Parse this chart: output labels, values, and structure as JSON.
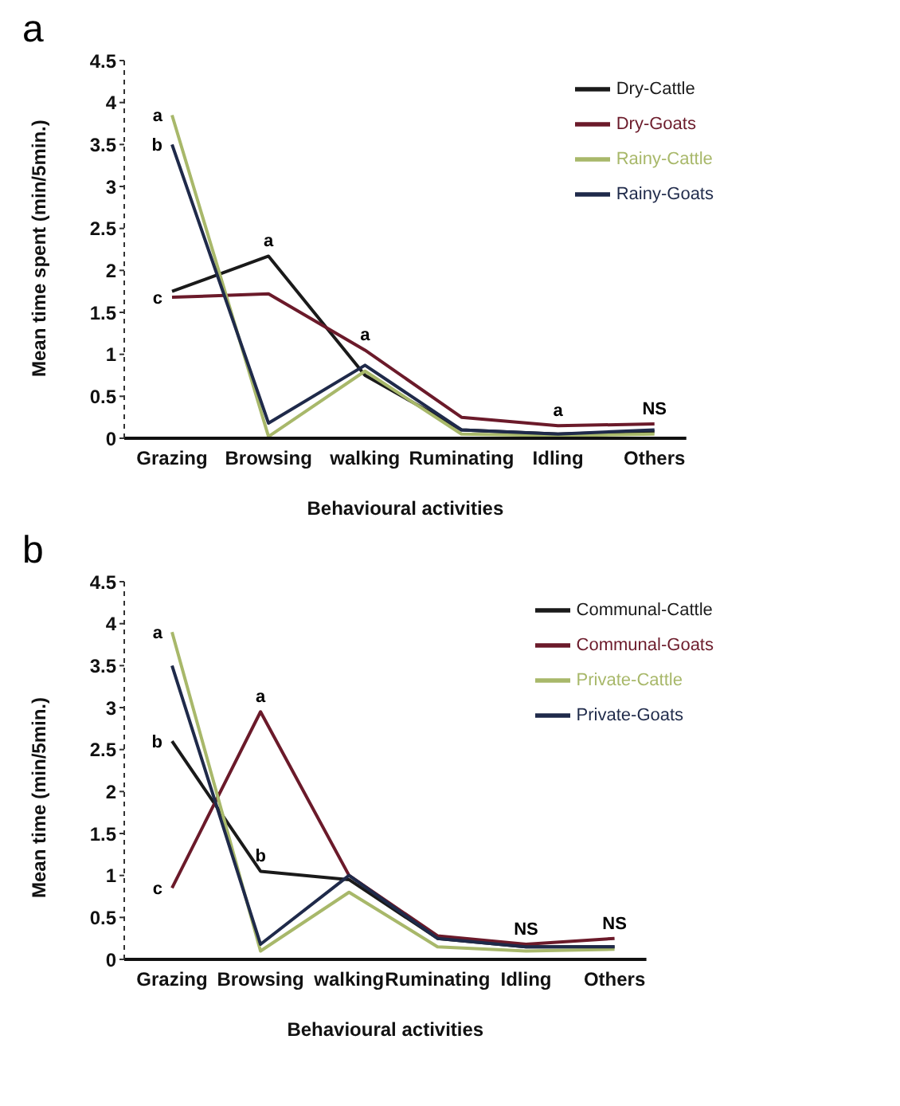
{
  "chart_data": [
    {
      "type": "line",
      "title": "a",
      "xlabel": "Behavioural activities",
      "ylabel": "Mean time spent (min/5min.)",
      "categories": [
        "Grazing",
        "Browsing",
        "walking",
        "Ruminating",
        "Idling",
        "Others"
      ],
      "series": [
        {
          "name": "Dry-Cattle",
          "color": "#1a1a1a",
          "values": [
            1.75,
            2.17,
            0.75,
            0.1,
            0.05,
            0.08
          ]
        },
        {
          "name": "Dry-Goats",
          "color": "#6b1a2a",
          "values": [
            1.68,
            1.72,
            1.05,
            0.25,
            0.15,
            0.17
          ]
        },
        {
          "name": "Rainy-Cattle",
          "color": "#a8b86a",
          "values": [
            3.85,
            0.02,
            0.8,
            0.05,
            0.03,
            0.05
          ]
        },
        {
          "name": "Rainy-Goats",
          "color": "#1f2a4a",
          "values": [
            3.5,
            0.18,
            0.87,
            0.1,
            0.05,
            0.1
          ]
        }
      ],
      "ylim": [
        0,
        4.5
      ],
      "yticks": [
        0,
        0.5,
        1,
        1.5,
        2,
        2.5,
        3,
        3.5,
        4,
        4.5
      ],
      "annotations": [
        {
          "text": "a",
          "x": "Grazing",
          "y": 3.85
        },
        {
          "text": "b",
          "x": "Grazing",
          "y": 3.5
        },
        {
          "text": "c",
          "x": "Grazing",
          "y": 1.68
        },
        {
          "text": "a",
          "x": "Browsing",
          "y": 2.17
        },
        {
          "text": "a",
          "x": "walking",
          "y": 1.05
        },
        {
          "text": "a",
          "x": "Idling",
          "y": 0.15
        },
        {
          "text": "NS",
          "x": "Others",
          "y": 0.17
        }
      ],
      "legend": "top right",
      "grid": false,
      "marker": "none",
      "line_style": "solid"
    },
    {
      "type": "line",
      "title": "b",
      "xlabel": "Behavioural activities",
      "ylabel": "Mean time (min/5min.)",
      "categories": [
        "Grazing",
        "Browsing",
        "walking",
        "Ruminating",
        "Idling",
        "Others"
      ],
      "series": [
        {
          "name": "Communal-Cattle",
          "color": "#1a1a1a",
          "values": [
            2.6,
            1.05,
            0.95,
            0.25,
            0.15,
            0.15
          ]
        },
        {
          "name": "Communal-Goats",
          "color": "#6b1a2a",
          "values": [
            0.85,
            2.95,
            1.0,
            0.28,
            0.18,
            0.25
          ]
        },
        {
          "name": "Private-Cattle",
          "color": "#a8b86a",
          "values": [
            3.9,
            0.1,
            0.8,
            0.15,
            0.1,
            0.12
          ]
        },
        {
          "name": "Private-Goats",
          "color": "#1f2a4a",
          "values": [
            3.5,
            0.18,
            1.0,
            0.25,
            0.15,
            0.15
          ]
        }
      ],
      "ylim": [
        0,
        4.5
      ],
      "yticks": [
        0,
        0.5,
        1,
        1.5,
        2,
        2.5,
        3,
        3.5,
        4,
        4.5
      ],
      "annotations": [
        {
          "text": "a",
          "x": "Grazing",
          "y": 3.9
        },
        {
          "text": "b",
          "x": "Grazing",
          "y": 2.6
        },
        {
          "text": "c",
          "x": "Grazing",
          "y": 0.85
        },
        {
          "text": "a",
          "x": "Browsing",
          "y": 2.95
        },
        {
          "text": "b",
          "x": "Browsing",
          "y": 1.05
        },
        {
          "text": "NS",
          "x": "Idling",
          "y": 0.18
        },
        {
          "text": "NS",
          "x": "Others",
          "y": 0.25
        }
      ],
      "legend": "top right",
      "grid": false,
      "marker": "none",
      "line_style": "solid"
    }
  ]
}
